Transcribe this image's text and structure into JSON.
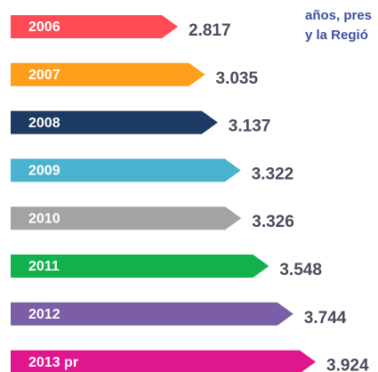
{
  "chart_data": {
    "type": "arrow-bar",
    "annotations": [
      "años, pres",
      "y la Regió"
    ],
    "categories": [
      "2006",
      "2007",
      "2008",
      "2009",
      "2010",
      "2011",
      "2012",
      "2013 pr"
    ],
    "values": [
      2.817,
      3.035,
      3.137,
      3.322,
      3.326,
      3.548,
      3.744,
      3.924
    ],
    "colors": [
      "#ff4b55",
      "#ff9e1b",
      "#1c3a63",
      "#4ab3cf",
      "#a3a3a3",
      "#12b14e",
      "#7b5ea6",
      "#e0168f"
    ]
  }
}
